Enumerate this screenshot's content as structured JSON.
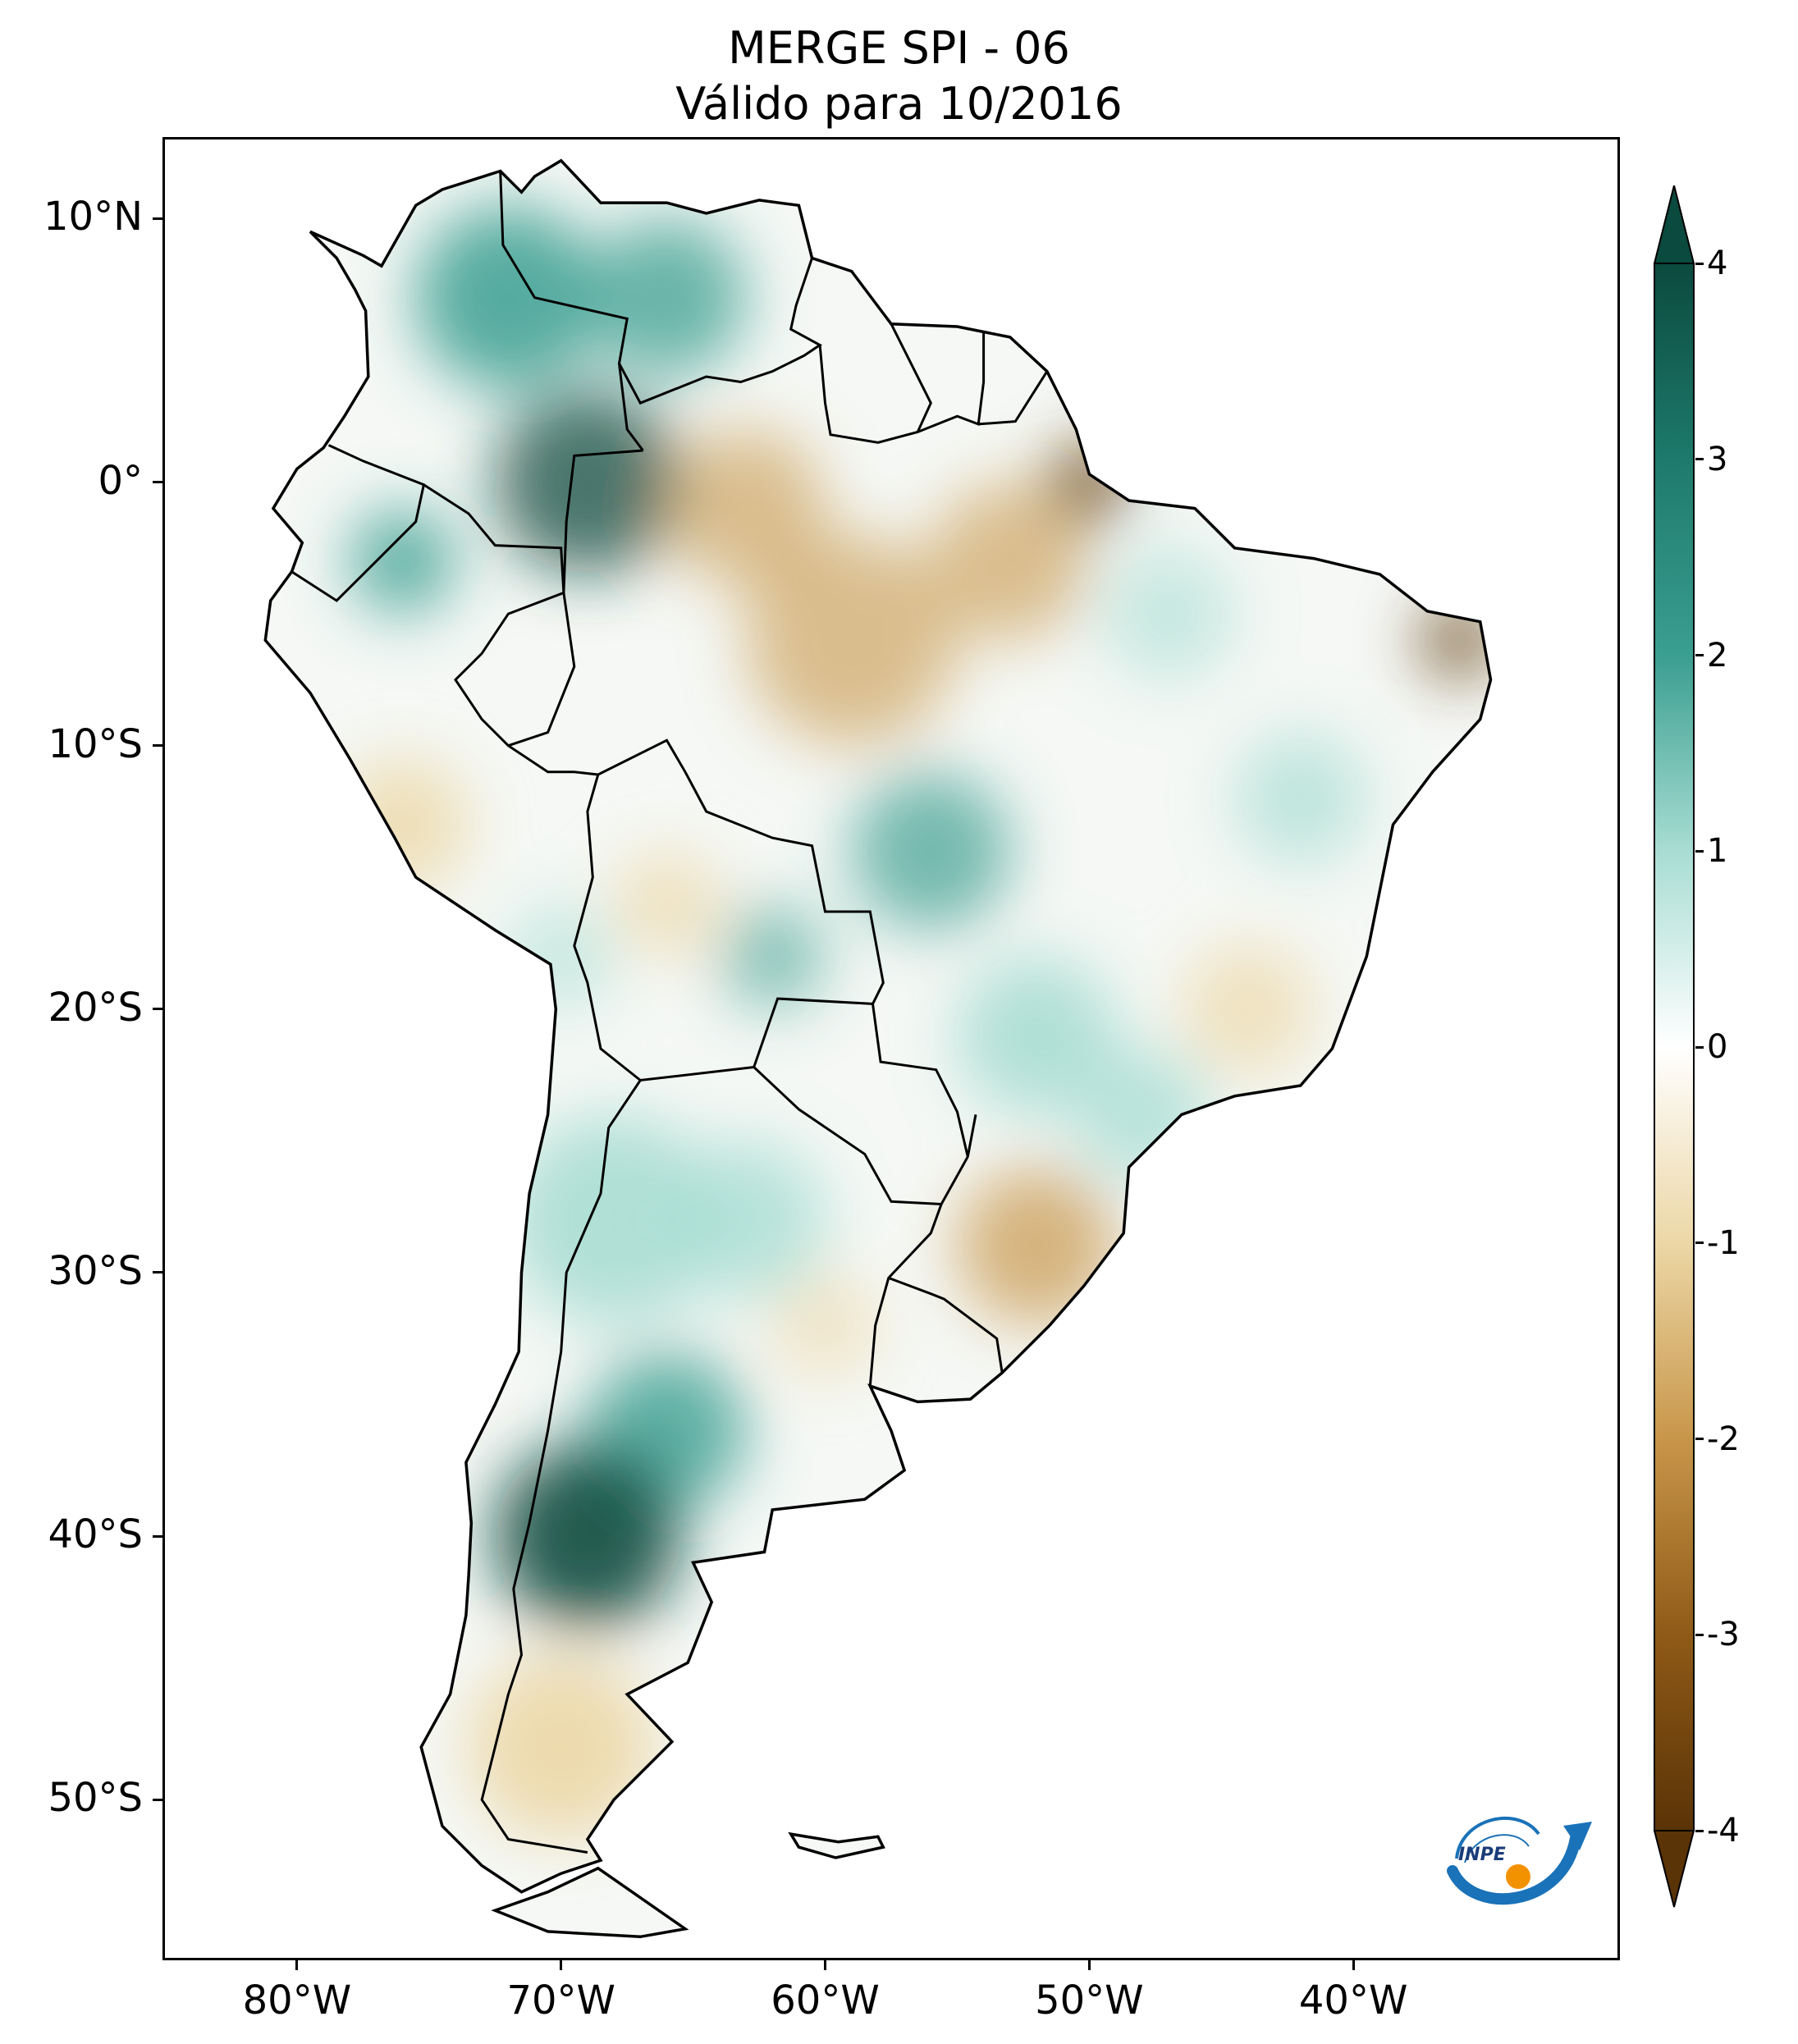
{
  "title": {
    "line1": "MERGE   SPI - 06",
    "line2": "Válido para 10/2016"
  },
  "map": {
    "region": "South America",
    "variable": "SPI - 06",
    "lat_ticks": [
      {
        "value": 10,
        "label": "10°N"
      },
      {
        "value": 0,
        "label": "0°"
      },
      {
        "value": -10,
        "label": "10°S"
      },
      {
        "value": -20,
        "label": "20°S"
      },
      {
        "value": -30,
        "label": "30°S"
      },
      {
        "value": -40,
        "label": "40°S"
      },
      {
        "value": -50,
        "label": "50°S"
      }
    ],
    "lon_ticks": [
      {
        "value": -80,
        "label": "80°W"
      },
      {
        "value": -70,
        "label": "70°W"
      },
      {
        "value": -60,
        "label": "60°W"
      },
      {
        "value": -50,
        "label": "50°W"
      },
      {
        "value": -40,
        "label": "40°W"
      }
    ],
    "extent": {
      "lon_min": -85,
      "lon_max": -30,
      "lat_min": -56,
      "lat_max": 13
    }
  },
  "colorbar": {
    "min": -4,
    "max": 4,
    "extend": "both",
    "ticks": [
      {
        "value": 4,
        "label": "4"
      },
      {
        "value": 3,
        "label": "3"
      },
      {
        "value": 2,
        "label": "2"
      },
      {
        "value": 1,
        "label": "1"
      },
      {
        "value": 0,
        "label": "0"
      },
      {
        "value": -1,
        "label": "-1"
      },
      {
        "value": -2,
        "label": "-2"
      },
      {
        "value": -3,
        "label": "-3"
      },
      {
        "value": -4,
        "label": "-4"
      }
    ],
    "colors": {
      "wet_max": "#0b4a3e",
      "wet_mid": "#3a9e90",
      "wet_low": "#a8ddd3",
      "neutral": "#ffffff",
      "dry_low": "#ecd7a6",
      "dry_mid": "#c8964a",
      "dry_max": "#5a3306"
    }
  },
  "logo": {
    "text": "INPE",
    "colors": {
      "arc": "#1a72b8",
      "dot": "#f39200"
    }
  }
}
